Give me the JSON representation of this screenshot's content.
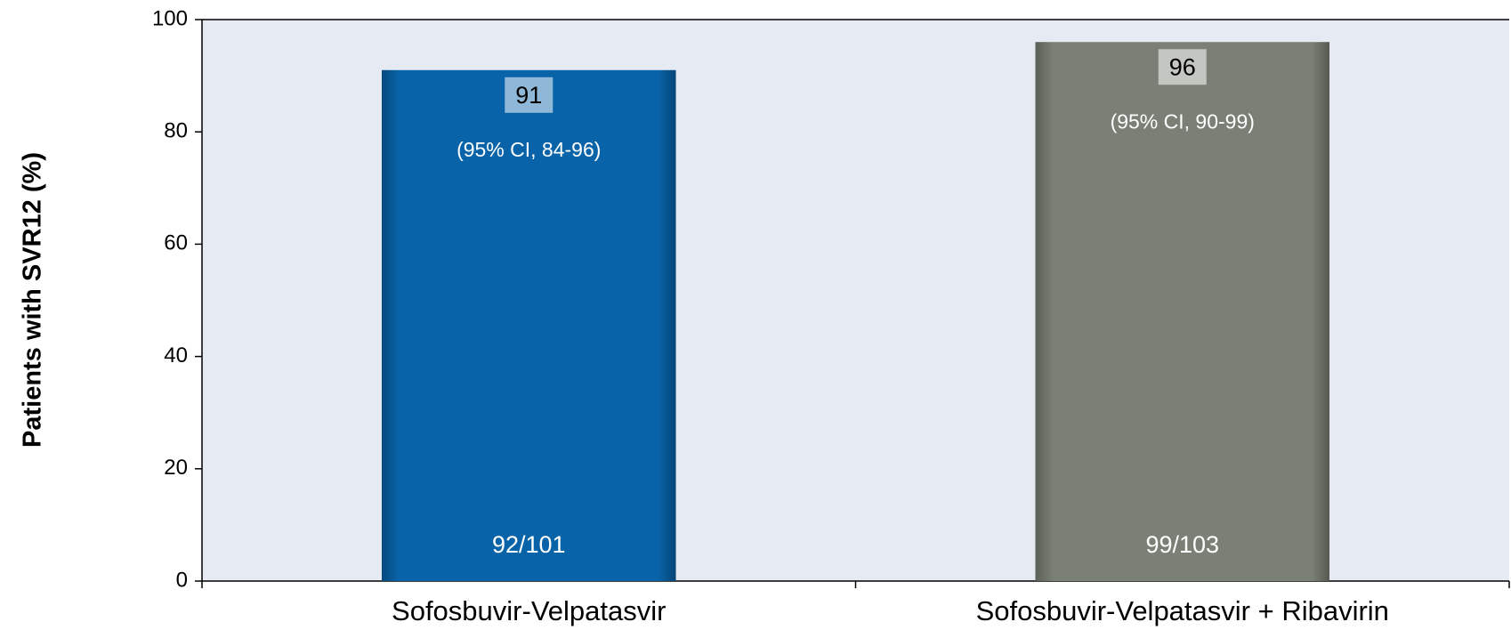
{
  "chart_data": {
    "type": "bar",
    "y_label": "Patients with SVR12 (%)",
    "categories": [
      "Sofosbuvir-Velpatasvir",
      "Sofosbuvir-Velpatasvir + Ribavirin"
    ],
    "values": [
      91,
      96
    ],
    "colors": [
      "#0863a8",
      "#7a8075"
    ],
    "ci_labels": [
      "(95% CI, 84-96)",
      "(95% CI, 90-99)"
    ],
    "n_labels": [
      "92/101",
      "99/103"
    ],
    "ylim": [
      0,
      100
    ],
    "yticks": [
      0,
      20,
      40,
      60,
      80,
      100
    ]
  }
}
